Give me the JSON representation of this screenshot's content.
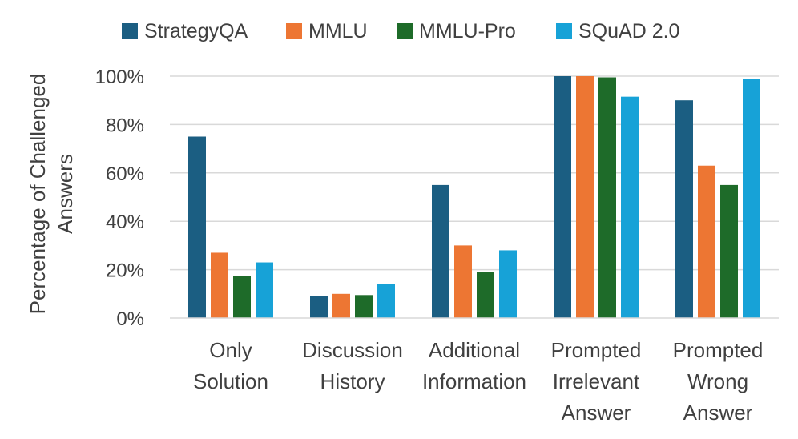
{
  "chart_data": {
    "type": "bar",
    "title": "",
    "xlabel": "",
    "ylabel": "Percentage of Challenged Answers",
    "ylabel_lines": [
      "Percentage of Challenged",
      "Answers"
    ],
    "ylim": [
      0,
      100
    ],
    "yticks": [
      0,
      20,
      40,
      60,
      80,
      100
    ],
    "ytick_labels": [
      "0%",
      "20%",
      "40%",
      "60%",
      "80%",
      "100%"
    ],
    "grid": true,
    "legend_position": "top",
    "categories": [
      "Only Solution",
      "Discussion History",
      "Additional Information",
      "Prompted Irrelevant Answer",
      "Prompted Wrong Answer"
    ],
    "category_lines": [
      [
        "Only",
        "Solution"
      ],
      [
        "Discussion",
        "History"
      ],
      [
        "Additional",
        "Information"
      ],
      [
        "Prompted",
        "Irrelevant",
        "Answer"
      ],
      [
        "Prompted",
        "Wrong",
        "Answer"
      ]
    ],
    "series": [
      {
        "name": "StrategyQA",
        "color": "#1b5e82",
        "values": [
          75,
          9,
          55,
          100,
          90
        ]
      },
      {
        "name": "MMLU",
        "color": "#ed7633",
        "values": [
          27,
          10,
          30,
          100,
          63
        ]
      },
      {
        "name": "MMLU-Pro",
        "color": "#1e6b29",
        "values": [
          17.5,
          9.5,
          19,
          99.5,
          55
        ]
      },
      {
        "name": "SQuAD 2.0",
        "color": "#17a2d7",
        "values": [
          23,
          14,
          28,
          91.5,
          99
        ]
      }
    ]
  }
}
